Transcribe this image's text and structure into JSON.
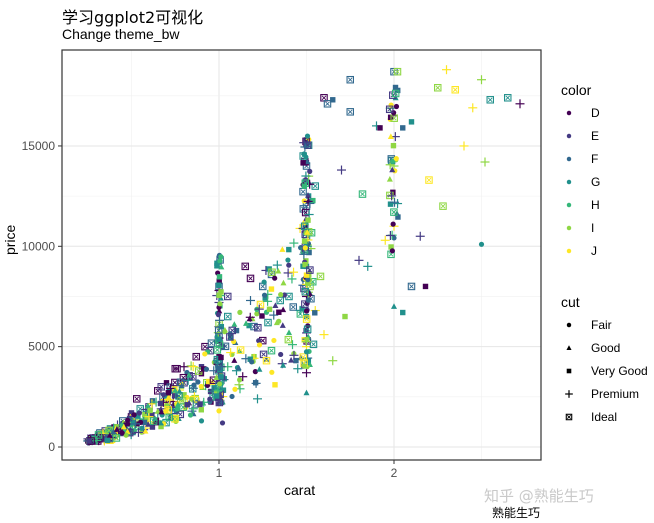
{
  "header": {
    "title": "学习ggplot2可视化",
    "subtitle": "Change theme_bw"
  },
  "watermark": {
    "line1": "知乎 @熟能生巧",
    "line2": "熟能生巧"
  },
  "chart_data": {
    "type": "scatter",
    "title": "学习ggplot2可视化",
    "subtitle": "Change theme_bw",
    "xlabel": "carat",
    "ylabel": "price",
    "x_ticks": [
      "1",
      "2"
    ],
    "y_ticks": [
      "0",
      "5000",
      "10000",
      "15000"
    ],
    "xlim": [
      0.2,
      2.9
    ],
    "ylim": [
      -300,
      19500
    ],
    "grid": true,
    "theme": "theme_bw",
    "legend_position": "right",
    "legends": [
      {
        "title": "color",
        "aesthetic": "color",
        "entries": [
          {
            "label": "D",
            "color": "#440154"
          },
          {
            "label": "E",
            "color": "#443A83"
          },
          {
            "label": "F",
            "color": "#31688E"
          },
          {
            "label": "G",
            "color": "#21908C"
          },
          {
            "label": "H",
            "color": "#35B779"
          },
          {
            "label": "I",
            "color": "#8FD744"
          },
          {
            "label": "J",
            "color": "#FDE725"
          }
        ]
      },
      {
        "title": "cut",
        "aesthetic": "shape",
        "entries": [
          {
            "label": "Fair",
            "shape": "circle"
          },
          {
            "label": "Good",
            "shape": "triangle"
          },
          {
            "label": "Very Good",
            "shape": "square"
          },
          {
            "label": "Premium",
            "shape": "plus"
          },
          {
            "label": "Ideal",
            "shape": "square-cross"
          }
        ]
      }
    ],
    "points": [
      {
        "x": 0.28,
        "y": 450,
        "color": "E",
        "cut": "Ideal"
      },
      {
        "x": 0.3,
        "y": 600,
        "color": "D",
        "cut": "Premium"
      },
      {
        "x": 0.32,
        "y": 700,
        "color": "F",
        "cut": "Ideal"
      },
      {
        "x": 0.33,
        "y": 550,
        "color": "I",
        "cut": "Very Good"
      },
      {
        "x": 0.35,
        "y": 800,
        "color": "E",
        "cut": "Ideal"
      },
      {
        "x": 0.36,
        "y": 500,
        "color": "J",
        "cut": "Good"
      },
      {
        "x": 0.38,
        "y": 900,
        "color": "G",
        "cut": "Ideal"
      },
      {
        "x": 0.4,
        "y": 1000,
        "color": "D",
        "cut": "Very Good"
      },
      {
        "x": 0.41,
        "y": 700,
        "color": "H",
        "cut": "Ideal"
      },
      {
        "x": 0.42,
        "y": 1100,
        "color": "E",
        "cut": "Premium"
      },
      {
        "x": 0.45,
        "y": 1300,
        "color": "F",
        "cut": "Ideal"
      },
      {
        "x": 0.47,
        "y": 900,
        "color": "J",
        "cut": "Premium"
      },
      {
        "x": 0.5,
        "y": 1500,
        "color": "D",
        "cut": "Ideal"
      },
      {
        "x": 0.5,
        "y": 1700,
        "color": "E",
        "cut": "Very Good"
      },
      {
        "x": 0.52,
        "y": 1200,
        "color": "I",
        "cut": "Ideal"
      },
      {
        "x": 0.53,
        "y": 2400,
        "color": "D",
        "cut": "Ideal"
      },
      {
        "x": 0.55,
        "y": 1900,
        "color": "G",
        "cut": "Ideal"
      },
      {
        "x": 0.57,
        "y": 1400,
        "color": "H",
        "cut": "Premium"
      },
      {
        "x": 0.6,
        "y": 2000,
        "color": "E",
        "cut": "Ideal"
      },
      {
        "x": 0.6,
        "y": 1100,
        "color": "J",
        "cut": "Ideal"
      },
      {
        "x": 0.62,
        "y": 2300,
        "color": "F",
        "cut": "Very Good"
      },
      {
        "x": 0.65,
        "y": 2800,
        "color": "D",
        "cut": "Ideal"
      },
      {
        "x": 0.65,
        "y": 1700,
        "color": "G",
        "cut": "Premium"
      },
      {
        "x": 0.67,
        "y": 3000,
        "color": "E",
        "cut": "Ideal"
      },
      {
        "x": 0.68,
        "y": 2500,
        "color": "F",
        "cut": "Ideal"
      },
      {
        "x": 0.7,
        "y": 3200,
        "color": "D",
        "cut": "Very Good"
      },
      {
        "x": 0.7,
        "y": 2200,
        "color": "H",
        "cut": "Ideal"
      },
      {
        "x": 0.72,
        "y": 2700,
        "color": "F",
        "cut": "Premium"
      },
      {
        "x": 0.73,
        "y": 1900,
        "color": "G",
        "cut": "Very Good"
      },
      {
        "x": 0.75,
        "y": 3900,
        "color": "D",
        "cut": "Ideal"
      },
      {
        "x": 0.76,
        "y": 3900,
        "color": "D",
        "cut": "Ideal"
      },
      {
        "x": 0.8,
        "y": 4000,
        "color": "D",
        "cut": "Premium"
      },
      {
        "x": 0.8,
        "y": 3200,
        "color": "E",
        "cut": "Ideal"
      },
      {
        "x": 0.8,
        "y": 2600,
        "color": "I",
        "cut": "Very Good"
      },
      {
        "x": 0.82,
        "y": 2100,
        "color": "J",
        "cut": "Premium"
      },
      {
        "x": 0.85,
        "y": 3500,
        "color": "E",
        "cut": "Ideal"
      },
      {
        "x": 0.85,
        "y": 2900,
        "color": "G",
        "cut": "Ideal"
      },
      {
        "x": 0.87,
        "y": 4500,
        "color": "D",
        "cut": "Ideal"
      },
      {
        "x": 0.88,
        "y": 2200,
        "color": "H",
        "cut": "Premium"
      },
      {
        "x": 0.9,
        "y": 4000,
        "color": "E",
        "cut": "Very Good"
      },
      {
        "x": 0.9,
        "y": 1300,
        "color": "G",
        "cut": "Fair"
      },
      {
        "x": 0.92,
        "y": 5000,
        "color": "D",
        "cut": "Ideal"
      },
      {
        "x": 0.93,
        "y": 3200,
        "color": "I",
        "cut": "Ideal"
      },
      {
        "x": 0.95,
        "y": 4800,
        "color": "E",
        "cut": "Ideal"
      },
      {
        "x": 0.97,
        "y": 3800,
        "color": "F",
        "cut": "Premium"
      },
      {
        "x": 1.0,
        "y": 8000,
        "color": "F",
        "cut": "Ideal"
      },
      {
        "x": 1.0,
        "y": 7800,
        "color": "D",
        "cut": "Premium"
      },
      {
        "x": 1.0,
        "y": 7200,
        "color": "E",
        "cut": "Premium"
      },
      {
        "x": 1.0,
        "y": 6000,
        "color": "E",
        "cut": "Premium"
      },
      {
        "x": 1.0,
        "y": 5500,
        "color": "F",
        "cut": "Ideal"
      },
      {
        "x": 1.0,
        "y": 4500,
        "color": "D",
        "cut": "Very Good"
      },
      {
        "x": 1.0,
        "y": 3800,
        "color": "G",
        "cut": "Ideal"
      },
      {
        "x": 1.0,
        "y": 2800,
        "color": "J",
        "cut": "Ideal"
      },
      {
        "x": 1.0,
        "y": 1800,
        "color": "J",
        "cut": "Fair"
      },
      {
        "x": 1.02,
        "y": 5000,
        "color": "F",
        "cut": "Very Good"
      },
      {
        "x": 1.02,
        "y": 1200,
        "color": "E",
        "cut": "Fair"
      },
      {
        "x": 1.03,
        "y": 3400,
        "color": "G",
        "cut": "Very Good"
      },
      {
        "x": 1.05,
        "y": 7500,
        "color": "E",
        "cut": "Ideal"
      },
      {
        "x": 1.05,
        "y": 6500,
        "color": "G",
        "cut": "Ideal"
      },
      {
        "x": 1.05,
        "y": 4000,
        "color": "H",
        "cut": "Premium"
      },
      {
        "x": 1.1,
        "y": 5800,
        "color": "F",
        "cut": "Very Good"
      },
      {
        "x": 1.1,
        "y": 3800,
        "color": "G",
        "cut": "Premium"
      },
      {
        "x": 1.12,
        "y": 2900,
        "color": "H",
        "cut": "Premium"
      },
      {
        "x": 1.15,
        "y": 9000,
        "color": "D",
        "cut": "Ideal"
      },
      {
        "x": 1.18,
        "y": 8400,
        "color": "D",
        "cut": "Ideal"
      },
      {
        "x": 1.18,
        "y": 7300,
        "color": "F",
        "cut": "Premium"
      },
      {
        "x": 1.2,
        "y": 6000,
        "color": "F",
        "cut": "Ideal"
      },
      {
        "x": 1.2,
        "y": 4500,
        "color": "I",
        "cut": "Very Good"
      },
      {
        "x": 1.22,
        "y": 2400,
        "color": "G",
        "cut": "Premium"
      },
      {
        "x": 1.25,
        "y": 8000,
        "color": "F",
        "cut": "Ideal"
      },
      {
        "x": 1.25,
        "y": 5300,
        "color": "D",
        "cut": "Ideal"
      },
      {
        "x": 1.28,
        "y": 6200,
        "color": "G",
        "cut": "Ideal"
      },
      {
        "x": 1.3,
        "y": 8600,
        "color": "F",
        "cut": "Ideal"
      },
      {
        "x": 1.3,
        "y": 4800,
        "color": "H",
        "cut": "Ideal"
      },
      {
        "x": 1.32,
        "y": 3100,
        "color": "J",
        "cut": "Very Good"
      },
      {
        "x": 1.35,
        "y": 7300,
        "color": "G",
        "cut": "Ideal"
      },
      {
        "x": 1.4,
        "y": 7500,
        "color": "G",
        "cut": "Ideal"
      },
      {
        "x": 1.4,
        "y": 5700,
        "color": "H",
        "cut": "Good"
      },
      {
        "x": 1.42,
        "y": 5100,
        "color": "H",
        "cut": "Premium"
      },
      {
        "x": 1.45,
        "y": 3900,
        "color": "G",
        "cut": "Premium"
      },
      {
        "x": 1.5,
        "y": 15300,
        "color": "F",
        "cut": "Very Good"
      },
      {
        "x": 1.5,
        "y": 14000,
        "color": "F",
        "cut": "Ideal"
      },
      {
        "x": 1.5,
        "y": 12000,
        "color": "F",
        "cut": "Ideal"
      },
      {
        "x": 1.5,
        "y": 10500,
        "color": "G",
        "cut": "Ideal"
      },
      {
        "x": 1.5,
        "y": 9000,
        "color": "G",
        "cut": "Very Good"
      },
      {
        "x": 1.5,
        "y": 7500,
        "color": "D",
        "cut": "Premium"
      },
      {
        "x": 1.5,
        "y": 6500,
        "color": "G",
        "cut": "Very Good"
      },
      {
        "x": 1.5,
        "y": 5000,
        "color": "J",
        "cut": "Premium"
      },
      {
        "x": 1.5,
        "y": 3700,
        "color": "D",
        "cut": "Premium"
      },
      {
        "x": 1.5,
        "y": 2700,
        "color": "G",
        "cut": "Good"
      },
      {
        "x": 1.52,
        "y": 8000,
        "color": "I",
        "cut": "Ideal"
      },
      {
        "x": 1.55,
        "y": 6800,
        "color": "J",
        "cut": "Premium"
      },
      {
        "x": 1.55,
        "y": 13000,
        "color": "G",
        "cut": "Ideal"
      },
      {
        "x": 1.58,
        "y": 8500,
        "color": "I",
        "cut": "Ideal"
      },
      {
        "x": 1.6,
        "y": 17400,
        "color": "D",
        "cut": "Ideal"
      },
      {
        "x": 1.6,
        "y": 5600,
        "color": "J",
        "cut": "Premium"
      },
      {
        "x": 1.62,
        "y": 17100,
        "color": "F",
        "cut": "Ideal"
      },
      {
        "x": 1.65,
        "y": 17300,
        "color": "F",
        "cut": "Very Good"
      },
      {
        "x": 1.65,
        "y": 4300,
        "color": "I",
        "cut": "Premium"
      },
      {
        "x": 1.7,
        "y": 13800,
        "color": "E",
        "cut": "Premium"
      },
      {
        "x": 1.72,
        "y": 6500,
        "color": "I",
        "cut": "Very Good"
      },
      {
        "x": 1.75,
        "y": 18300,
        "color": "F",
        "cut": "Ideal"
      },
      {
        "x": 1.75,
        "y": 16700,
        "color": "F",
        "cut": "Ideal"
      },
      {
        "x": 1.8,
        "y": 9300,
        "color": "E",
        "cut": "Premium"
      },
      {
        "x": 1.82,
        "y": 12600,
        "color": "H",
        "cut": "Ideal"
      },
      {
        "x": 1.85,
        "y": 9000,
        "color": "G",
        "cut": "Premium"
      },
      {
        "x": 1.9,
        "y": 16000,
        "color": "G",
        "cut": "Premium"
      },
      {
        "x": 1.92,
        "y": 15900,
        "color": "D",
        "cut": "Very Good"
      },
      {
        "x": 1.95,
        "y": 10300,
        "color": "J",
        "cut": "Premium"
      },
      {
        "x": 1.98,
        "y": 12100,
        "color": "G",
        "cut": "Very Good"
      },
      {
        "x": 2.0,
        "y": 18700,
        "color": "F",
        "cut": "Ideal"
      },
      {
        "x": 2.0,
        "y": 16600,
        "color": "D",
        "cut": "Good"
      },
      {
        "x": 2.0,
        "y": 14000,
        "color": "I",
        "cut": "Premium"
      },
      {
        "x": 2.0,
        "y": 11000,
        "color": "J",
        "cut": "Premium"
      },
      {
        "x": 2.0,
        "y": 7000,
        "color": "G",
        "cut": "Good"
      },
      {
        "x": 2.02,
        "y": 18700,
        "color": "I",
        "cut": "Ideal"
      },
      {
        "x": 2.05,
        "y": 15900,
        "color": "F",
        "cut": "Very Good"
      },
      {
        "x": 2.05,
        "y": 6700,
        "color": "G",
        "cut": "Very Good"
      },
      {
        "x": 2.1,
        "y": 16200,
        "color": "G",
        "cut": "Very Good"
      },
      {
        "x": 2.1,
        "y": 8000,
        "color": "F",
        "cut": "Ideal"
      },
      {
        "x": 2.15,
        "y": 10500,
        "color": "E",
        "cut": "Premium"
      },
      {
        "x": 2.18,
        "y": 8000,
        "color": "D",
        "cut": "Very Good"
      },
      {
        "x": 2.2,
        "y": 13300,
        "color": "J",
        "cut": "Ideal"
      },
      {
        "x": 2.25,
        "y": 17900,
        "color": "I",
        "cut": "Ideal"
      },
      {
        "x": 2.28,
        "y": 12000,
        "color": "I",
        "cut": "Ideal"
      },
      {
        "x": 2.3,
        "y": 18800,
        "color": "J",
        "cut": "Premium"
      },
      {
        "x": 2.35,
        "y": 17800,
        "color": "J",
        "cut": "Ideal"
      },
      {
        "x": 2.4,
        "y": 15000,
        "color": "J",
        "cut": "Premium"
      },
      {
        "x": 2.45,
        "y": 16900,
        "color": "J",
        "cut": "Premium"
      },
      {
        "x": 2.5,
        "y": 18300,
        "color": "I",
        "cut": "Premium"
      },
      {
        "x": 2.52,
        "y": 14200,
        "color": "I",
        "cut": "Premium"
      },
      {
        "x": 2.5,
        "y": 10100,
        "color": "G",
        "cut": "Fair"
      },
      {
        "x": 2.55,
        "y": 17300,
        "color": "G",
        "cut": "Ideal"
      },
      {
        "x": 2.65,
        "y": 17400,
        "color": "G",
        "cut": "Ideal"
      },
      {
        "x": 2.72,
        "y": 17100,
        "color": "D",
        "cut": "Premium"
      }
    ]
  }
}
